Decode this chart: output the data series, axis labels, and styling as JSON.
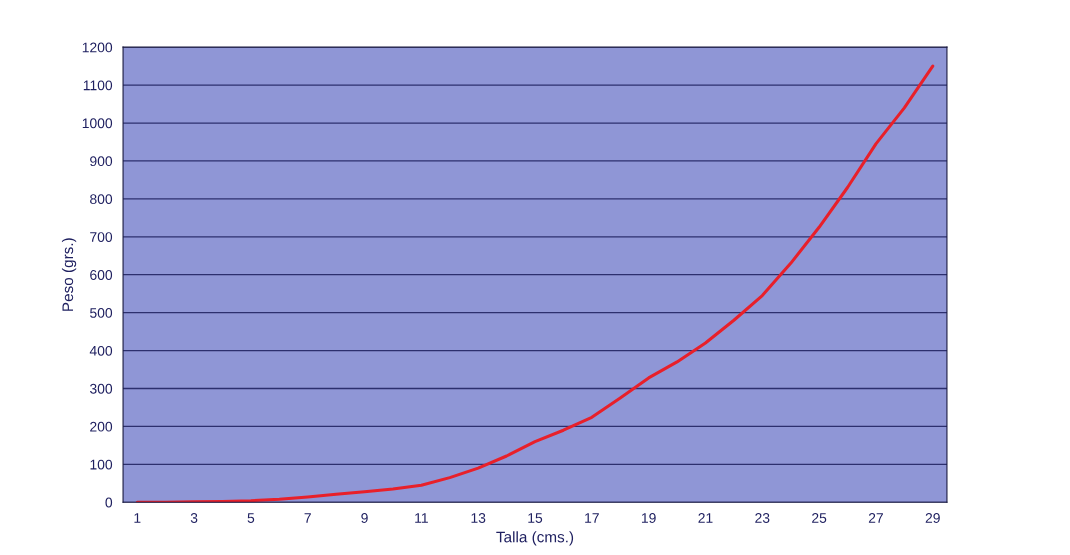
{
  "chart_data": {
    "type": "line",
    "xlabel": "Talla (cms.)",
    "ylabel": "Peso (grs.)",
    "categories": [
      "1",
      null,
      "3",
      null,
      "5",
      null,
      "7",
      null,
      "9",
      null,
      "11",
      null,
      "13",
      null,
      "15",
      null,
      "17",
      null,
      "19",
      null,
      "21",
      null,
      "23",
      null,
      "25",
      null,
      "27",
      null,
      "29"
    ],
    "series": [
      {
        "color": "#e8202a",
        "values": [
          0,
          0,
          1,
          2,
          4,
          8,
          14,
          21,
          28,
          35,
          45,
          65,
          90,
          122,
          160,
          190,
          224,
          275,
          328,
          370,
          420,
          480,
          545,
          630,
          725,
          830,
          945,
          1040,
          1150
        ]
      }
    ],
    "ylim": [
      0,
      1200
    ],
    "yticks": [
      0,
      100,
      200,
      300,
      400,
      500,
      600,
      700,
      800,
      900,
      1000,
      1100,
      1200
    ],
    "grid": "y",
    "marker": "none",
    "line_style": "solid"
  }
}
